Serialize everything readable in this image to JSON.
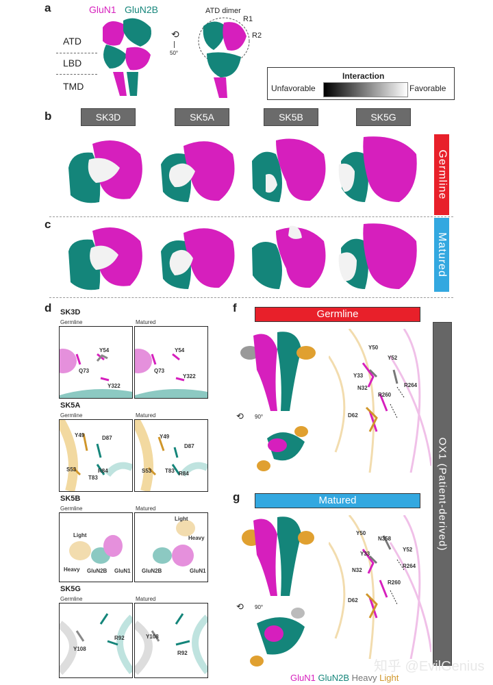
{
  "panels": {
    "a": "a",
    "b": "b",
    "c": "c",
    "d": "d",
    "f": "f",
    "g": "g"
  },
  "panel_a": {
    "legend_gluN1": "GluN1",
    "legend_gluN2b": "GluN2B",
    "domains": [
      "ATD",
      "LBD",
      "TMD"
    ],
    "rotation": "50°",
    "atd_dimer": "ATD dimer",
    "r1": "R1",
    "r2": "R2",
    "interaction_title": "Interaction",
    "unfavorable": "Unfavorable",
    "favorable": "Favorable"
  },
  "antibodies": [
    "SK3D",
    "SK5A",
    "SK5B",
    "SK5G"
  ],
  "side_labels": {
    "germline": "Germline",
    "matured": "Matured"
  },
  "panel_d": {
    "germline": "Germline",
    "matured": "Matured",
    "sk3d": {
      "title": "SK3D",
      "residues": [
        "Y54",
        "Q73",
        "Y322"
      ]
    },
    "sk5a": {
      "title": "SK5A",
      "residues": [
        "Y49",
        "D87",
        "S53",
        "R84",
        "T83"
      ]
    },
    "sk5b": {
      "title": "SK5B",
      "labels": [
        "Light",
        "Heavy",
        "GluN2B",
        "GluN1"
      ]
    },
    "sk5g": {
      "title": "SK5G",
      "residues": [
        "Y108",
        "R92"
      ]
    }
  },
  "panel_f": {
    "header": "Germline",
    "rotation": "90°",
    "residues": [
      "Y50",
      "Y52",
      "Y33",
      "N32",
      "R264",
      "R260",
      "D62"
    ]
  },
  "panel_g": {
    "header": "Matured",
    "rotation": "90°",
    "residues": [
      "Y50",
      "N358",
      "Y52",
      "Y33",
      "N32",
      "R264",
      "R260",
      "D62"
    ]
  },
  "ox1_label": "OX1 (Patient-derived)",
  "bottom_legend": {
    "gluN1": "GluN1",
    "gluN2b": "GluN2B",
    "heavy": "Heavy",
    "light": "Light"
  },
  "watermark": "知乎 @EvilGenius",
  "colors": {
    "gluN1": "#d61fbd",
    "gluN2b": "#14857a",
    "heavy": "#9a9a9a",
    "light": "#e0a030",
    "germline": "#e8202a",
    "matured": "#33a8e0",
    "ox1": "#666666"
  }
}
